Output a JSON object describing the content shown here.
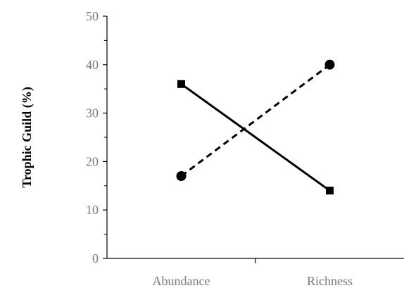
{
  "chart_data": {
    "type": "line",
    "categories": [
      "Abundance",
      "Richness"
    ],
    "series": [
      {
        "values": [
          36,
          14
        ],
        "line_style": "solid",
        "marker": "square",
        "color": "#000000"
      },
      {
        "values": [
          17,
          40
        ],
        "line_style": "dashed",
        "marker": "circle",
        "color": "#000000"
      }
    ],
    "xlabel": "",
    "ylabel": "Trophic Guild (%)",
    "ylim": [
      0,
      50
    ],
    "yticks": [
      0,
      10,
      20,
      30,
      40,
      50
    ],
    "grid": false
  }
}
